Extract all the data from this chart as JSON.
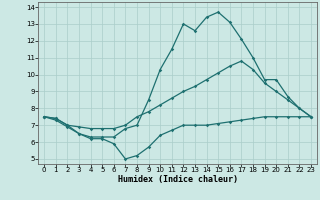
{
  "xlabel": "Humidex (Indice chaleur)",
  "xlim_min": -0.5,
  "xlim_max": 23.5,
  "ylim_min": 4.7,
  "ylim_max": 14.3,
  "yticks": [
    5,
    6,
    7,
    8,
    9,
    10,
    11,
    12,
    13,
    14
  ],
  "xticks": [
    0,
    1,
    2,
    3,
    4,
    5,
    6,
    7,
    8,
    9,
    10,
    11,
    12,
    13,
    14,
    15,
    16,
    17,
    18,
    19,
    20,
    21,
    22,
    23
  ],
  "bg_color": "#cce8e4",
  "grid_color": "#aaceca",
  "line_color": "#1e7070",
  "x": [
    0,
    1,
    2,
    3,
    4,
    5,
    6,
    7,
    8,
    9,
    10,
    11,
    12,
    13,
    14,
    15,
    16,
    17,
    18,
    19,
    20,
    21,
    22,
    23
  ],
  "line_max": [
    7.5,
    7.4,
    7.0,
    6.5,
    6.3,
    6.3,
    6.3,
    6.8,
    7.0,
    8.5,
    10.3,
    11.5,
    13.0,
    12.6,
    13.4,
    13.7,
    13.1,
    12.1,
    11.0,
    9.7,
    9.7,
    8.7,
    8.0,
    7.5
  ],
  "line_min": [
    7.5,
    7.3,
    6.9,
    6.5,
    6.2,
    6.2,
    5.9,
    5.0,
    5.2,
    5.7,
    6.4,
    6.7,
    7.0,
    7.0,
    7.0,
    7.1,
    7.2,
    7.3,
    7.4,
    7.5,
    7.5,
    7.5,
    7.5,
    7.5
  ],
  "line_mean": [
    7.5,
    7.4,
    7.0,
    6.9,
    6.8,
    6.8,
    6.8,
    7.0,
    7.5,
    7.8,
    8.2,
    8.6,
    9.0,
    9.3,
    9.7,
    10.1,
    10.5,
    10.8,
    10.3,
    9.5,
    9.0,
    8.5,
    8.0,
    7.5
  ]
}
